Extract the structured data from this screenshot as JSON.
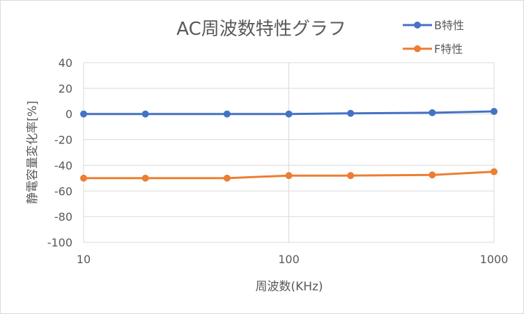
{
  "chart_data": {
    "type": "line",
    "title": "AC周波数特性グラフ",
    "xlabel": "周波数(KHz)",
    "ylabel": "静電容量変化率[%]",
    "x_scale": "log",
    "xlim": [
      10,
      1000
    ],
    "ylim": [
      -100,
      40
    ],
    "x_ticks": [
      10,
      100,
      1000
    ],
    "x_tick_labels": [
      "10",
      "100",
      "1000"
    ],
    "y_ticks": [
      40,
      20,
      0,
      -20,
      -40,
      -60,
      -80,
      -100
    ],
    "y_tick_labels": [
      "40",
      "20",
      "0",
      "-20",
      "-40",
      "-60",
      "-80",
      "-100"
    ],
    "grid": true,
    "legend_position": "top-right",
    "x": [
      10,
      20,
      50,
      100,
      200,
      500,
      1000
    ],
    "series": [
      {
        "name": "B特性",
        "color": "#4472c4",
        "values": [
          0,
          0,
          0,
          0,
          0.5,
          1,
          2
        ]
      },
      {
        "name": "F特性",
        "color": "#ed7d31",
        "values": [
          -50,
          -50,
          -50,
          -48,
          -48,
          -47.5,
          -45
        ]
      }
    ]
  }
}
